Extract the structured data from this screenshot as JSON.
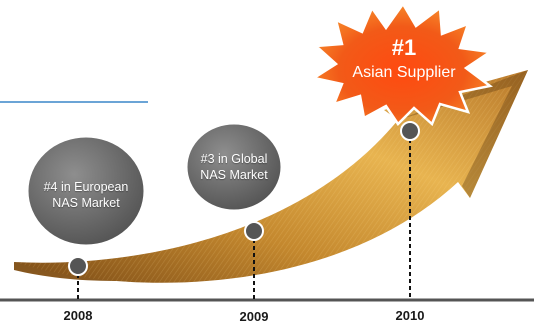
{
  "colors": {
    "accent_line": "#3a86c8",
    "axis": "#555555",
    "arrow_light": "#e9b64a",
    "arrow_mid": "#b5792a",
    "arrow_dark": "#6b4218",
    "badge_outer": "#f4731e",
    "badge_inner": "#ee3c12",
    "circle": "#6b6b6b"
  },
  "milestones": [
    {
      "year": "2008",
      "line1": "#4 in European",
      "line2": "NAS Market"
    },
    {
      "year": "2009",
      "line1": "#3 in Global",
      "line2": "NAS Market"
    },
    {
      "year": "2010",
      "line1": "",
      "line2": ""
    }
  ],
  "badge": {
    "rank": "#1",
    "text": "Asian Supplier"
  }
}
